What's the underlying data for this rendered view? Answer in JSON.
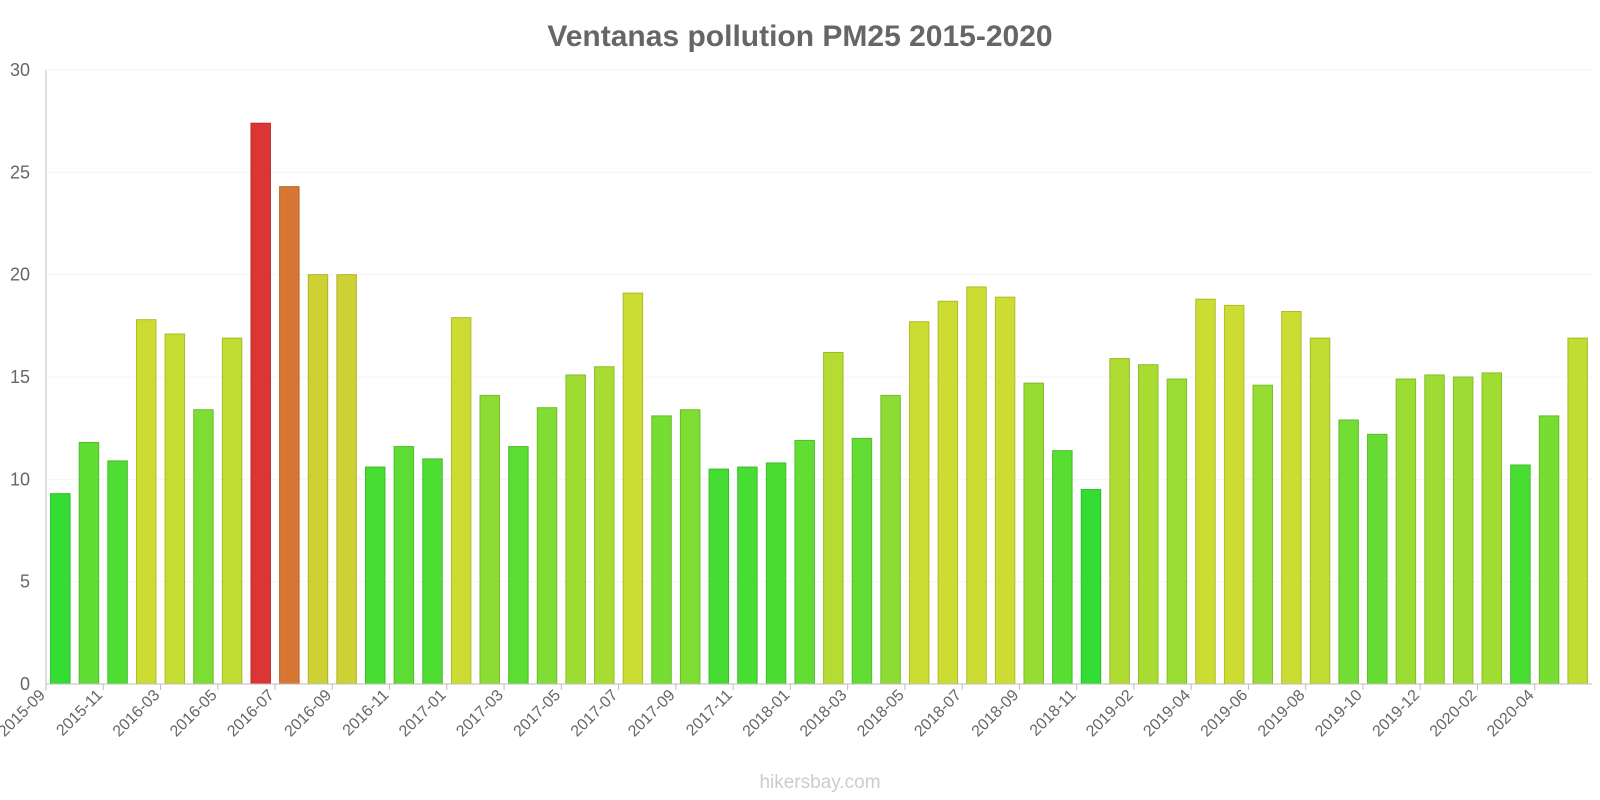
{
  "chart_data": {
    "type": "bar",
    "title": "Ventanas pollution PM25 2015-2020",
    "xlabel": "",
    "ylabel": "",
    "ylim": [
      0,
      30
    ],
    "yticks": [
      0,
      5,
      10,
      15,
      20,
      25,
      30
    ],
    "grid": true,
    "categories": [
      "2015-09",
      "2015-10",
      "2015-11",
      "2015-12",
      "2016-03",
      "2016-04",
      "2016-05",
      "2016-06",
      "2016-07",
      "2016-08",
      "2016-09",
      "2016-10",
      "2016-11",
      "2016-12",
      "2017-01",
      "2017-02",
      "2017-03",
      "2017-04",
      "2017-05",
      "2017-06",
      "2017-07",
      "2017-08",
      "2017-09",
      "2017-10",
      "2017-11",
      "2017-12",
      "2018-01",
      "2018-02",
      "2018-03",
      "2018-04",
      "2018-05",
      "2018-06",
      "2018-07",
      "2018-08",
      "2018-09",
      "2018-10",
      "2018-11",
      "2019-01",
      "2019-02",
      "2019-03",
      "2019-04",
      "2019-05",
      "2019-06",
      "2019-07",
      "2019-08",
      "2019-09",
      "2019-10",
      "2019-11",
      "2019-12",
      "2020-01",
      "2020-02",
      "2020-03",
      "2020-04",
      "2020-05"
    ],
    "visible_tick_labels": [
      "2015-09",
      "2015-11",
      "2016-03",
      "2016-05",
      "2016-07",
      "2016-09",
      "2016-11",
      "2017-01",
      "2017-03",
      "2017-05",
      "2017-07",
      "2017-09",
      "2017-11",
      "2018-01",
      "2018-03",
      "2018-05",
      "2018-07",
      "2018-09",
      "2018-11",
      "2019-02",
      "2019-04",
      "2019-06",
      "2019-08",
      "2019-10",
      "2019-12",
      "2020-02",
      "2020-04"
    ],
    "values": [
      9.3,
      11.8,
      10.9,
      17.8,
      17.1,
      13.4,
      16.9,
      27.4,
      24.3,
      20.0,
      20.0,
      10.6,
      11.6,
      11.0,
      17.9,
      14.1,
      11.6,
      13.5,
      15.1,
      15.5,
      19.1,
      13.1,
      13.4,
      10.5,
      10.6,
      10.8,
      11.9,
      16.2,
      12.0,
      14.1,
      17.7,
      18.7,
      19.4,
      18.9,
      14.7,
      11.4,
      9.5,
      15.9,
      15.6,
      14.9,
      18.8,
      18.5,
      14.6,
      18.2,
      16.9,
      12.9,
      12.2,
      14.9,
      15.1,
      15.0,
      15.2,
      10.7,
      13.1,
      16.9
    ],
    "colors": {
      "low": "#33dd33",
      "mid": "#cddc33",
      "high": "#dd3333",
      "grid": "#f4f4f4",
      "axis": "#bdbdbd",
      "text": "#666666"
    }
  },
  "watermark": "hikersbay.com"
}
